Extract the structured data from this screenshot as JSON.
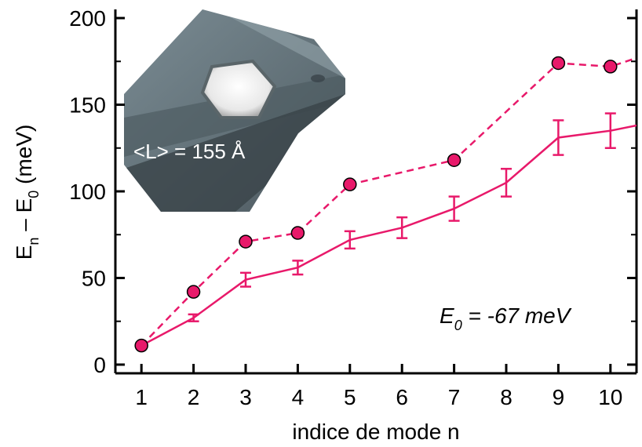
{
  "chart_data": {
    "type": "line",
    "xlabel": "indice de mode n",
    "ylabel": {
      "base": "E",
      "sub_n": "n",
      "minus": " – ",
      "sub_0": "0",
      "unit": " (meV)"
    },
    "x_ticks": [
      "1",
      "2",
      "3",
      "4",
      "5",
      "6",
      "7",
      "8",
      "9",
      "10"
    ],
    "y_ticks": [
      "0",
      "50",
      "100",
      "150",
      "200"
    ],
    "xlim": [
      0.5,
      10.5
    ],
    "ylim": [
      -5,
      205
    ],
    "grid": false,
    "series": [
      {
        "style": "dashed-markers",
        "color": "#e8196a",
        "x": [
          1,
          2,
          3,
          4,
          5,
          7,
          9,
          10
        ],
        "y": [
          11,
          42,
          71,
          76,
          104,
          118,
          174,
          172
        ],
        "continues_to": [
          10.5,
          177
        ]
      },
      {
        "style": "solid-errorbars",
        "color": "#e8196a",
        "x": [
          1,
          2,
          3,
          4,
          5,
          6,
          7,
          8,
          9,
          10
        ],
        "y": [
          11,
          27,
          49,
          56,
          72,
          79,
          90,
          105,
          131,
          135
        ],
        "err": [
          0,
          2,
          4,
          4,
          5,
          6,
          7,
          8,
          10,
          10
        ],
        "continues_to": [
          10.5,
          138
        ]
      }
    ],
    "annotations": {
      "e0_label": {
        "E": "E",
        "sub": "0",
        "rest": " = -67 meV"
      }
    },
    "inset": {
      "label": "<L> = 155 Å"
    }
  }
}
